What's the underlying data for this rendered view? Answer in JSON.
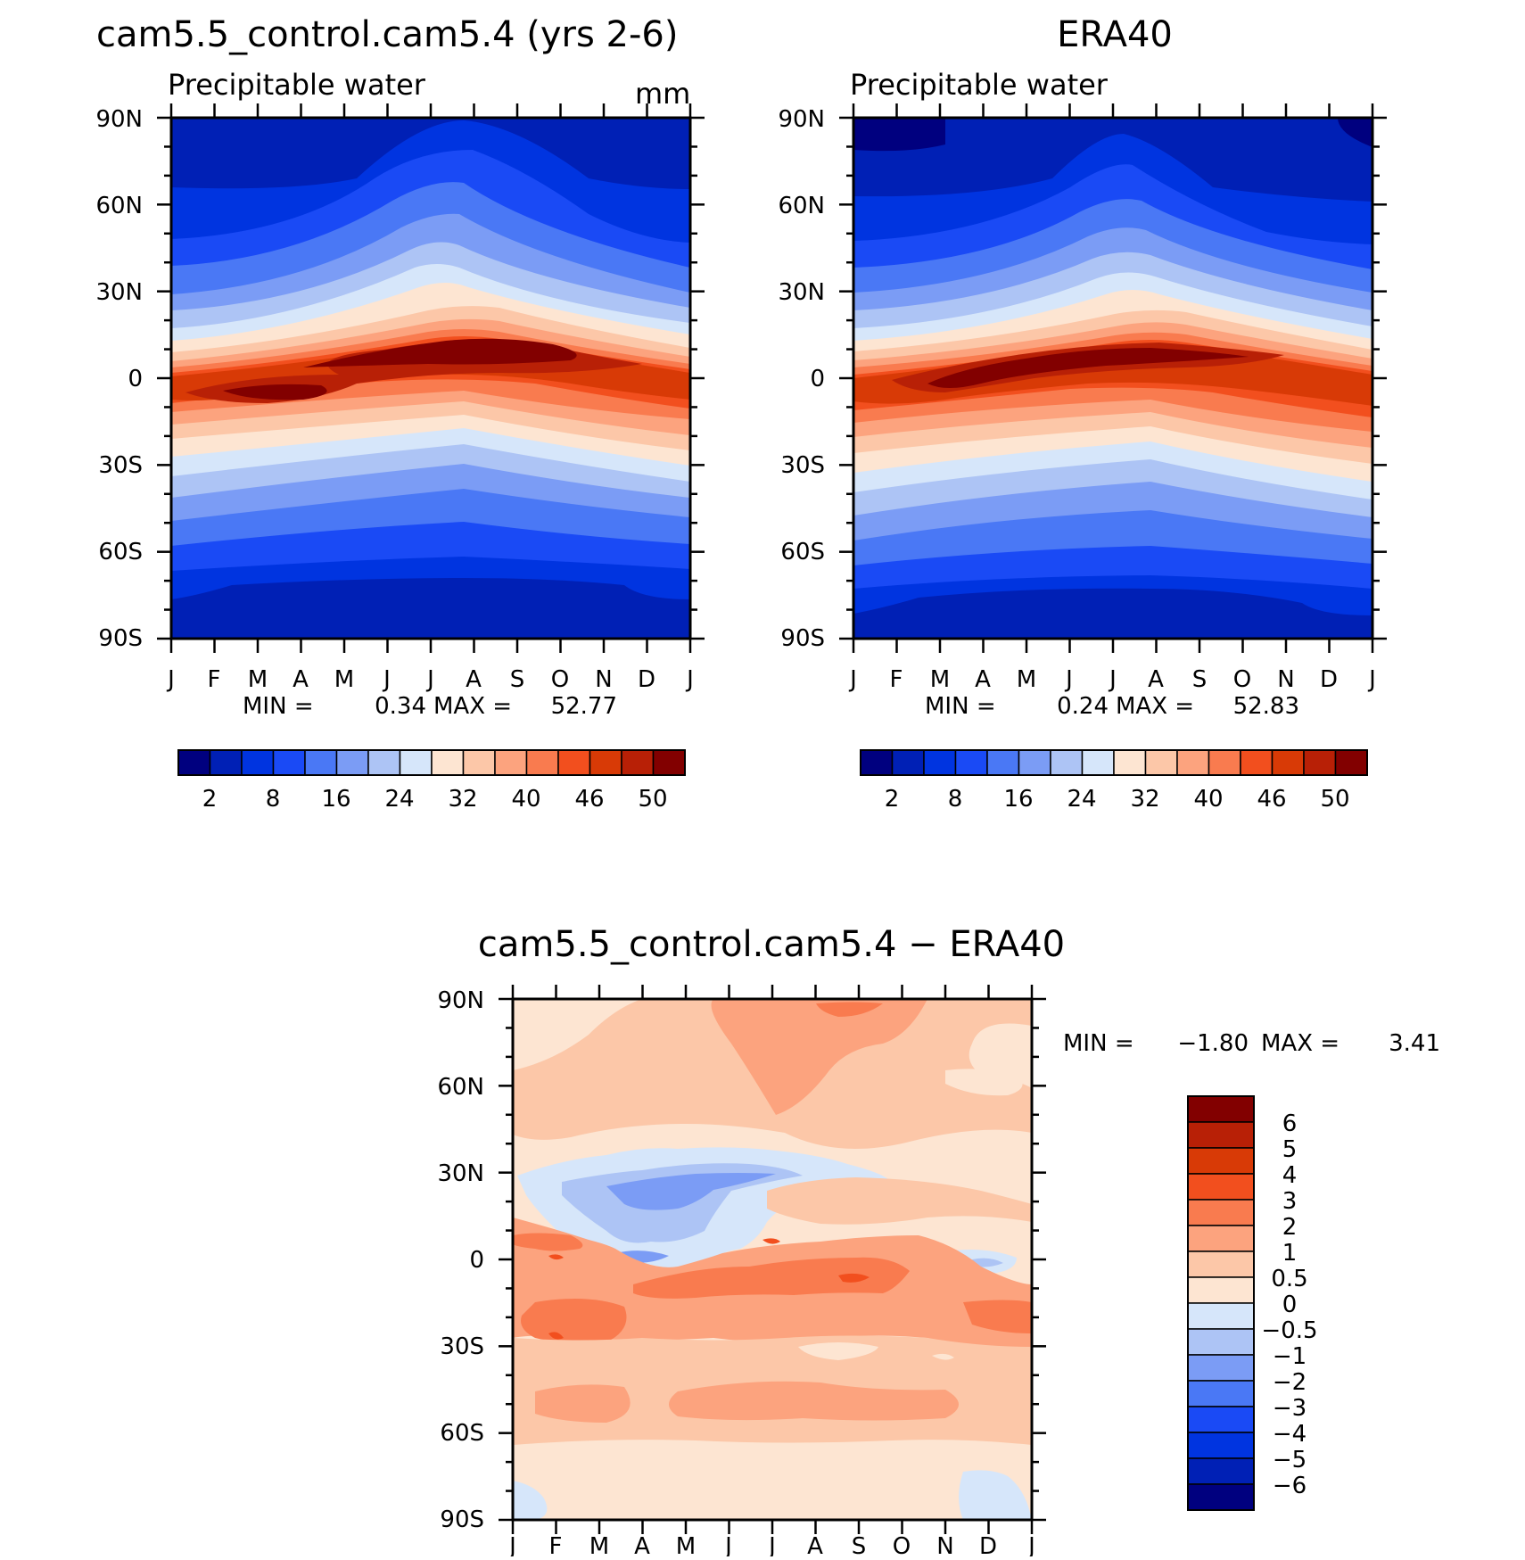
{
  "chart_data": [
    {
      "type": "heatmap",
      "title": "cam5.5_control.cam5.4 (yrs 2-6)",
      "subtitle": "Precipitable water",
      "units": "mm",
      "months": [
        "J",
        "F",
        "M",
        "A",
        "M",
        "J",
        "J",
        "A",
        "S",
        "O",
        "N",
        "D",
        "J"
      ],
      "lat_labels": [
        "90N",
        "60N",
        "30N",
        "0",
        "30S",
        "60S",
        "90S"
      ],
      "lat_range": [
        -90,
        90
      ],
      "stats": {
        "min_label": "MIN =",
        "min": "0.34",
        "max_label": "MAX =",
        "max": "52.77"
      },
      "colorbar_ticks": [
        "2",
        "8",
        "16",
        "24",
        "32",
        "40",
        "46",
        "50"
      ],
      "colors": [
        "#00007f",
        "#0020b5",
        "#0034e0",
        "#1a4af5",
        "#4a78f5",
        "#7b9cf5",
        "#adc4f5",
        "#d6e6fa",
        "#fde5d2",
        "#fcc7a8",
        "#fca37e",
        "#f97b4f",
        "#f24f1e",
        "#d83a06",
        "#b82006",
        "#820000"
      ]
    },
    {
      "type": "heatmap",
      "title": "ERA40",
      "subtitle": "Precipitable water",
      "units": "",
      "months": [
        "J",
        "F",
        "M",
        "A",
        "M",
        "J",
        "J",
        "A",
        "S",
        "O",
        "N",
        "D",
        "J"
      ],
      "lat_labels": [
        "90N",
        "60N",
        "30N",
        "0",
        "30S",
        "60S",
        "90S"
      ],
      "lat_range": [
        -90,
        90
      ],
      "stats": {
        "min_label": "MIN =",
        "min": "0.24",
        "max_label": "MAX =",
        "max": "52.83"
      },
      "colorbar_ticks": [
        "2",
        "8",
        "16",
        "24",
        "32",
        "40",
        "46",
        "50"
      ],
      "colors": [
        "#00007f",
        "#0020b5",
        "#0034e0",
        "#1a4af5",
        "#4a78f5",
        "#7b9cf5",
        "#adc4f5",
        "#d6e6fa",
        "#fde5d2",
        "#fcc7a8",
        "#fca37e",
        "#f97b4f",
        "#f24f1e",
        "#d83a06",
        "#b82006",
        "#820000"
      ]
    },
    {
      "type": "heatmap",
      "title": "cam5.5_control.cam5.4 − ERA40",
      "months": [
        "J",
        "F",
        "M",
        "A",
        "M",
        "J",
        "J",
        "A",
        "S",
        "O",
        "N",
        "D",
        "J"
      ],
      "lat_labels": [
        "90N",
        "60N",
        "30N",
        "0",
        "30S",
        "60S",
        "90S"
      ],
      "lat_range": [
        -90,
        90
      ],
      "stats": {
        "min_label": "MIN =",
        "min": "−1.80",
        "max_label": "MAX =",
        "max": "3.41"
      },
      "colorbar_ticks": [
        "6",
        "5",
        "4",
        "3",
        "2",
        "1",
        "0.5",
        "0",
        "−0.5",
        "−1",
        "−2",
        "−3",
        "−4",
        "−5",
        "−6"
      ],
      "colors": [
        "#820000",
        "#b82006",
        "#d83a06",
        "#f24f1e",
        "#f97b4f",
        "#fca37e",
        "#fcc7a8",
        "#fde5d2",
        "#d6e6fa",
        "#adc4f5",
        "#7b9cf5",
        "#4a78f5",
        "#1a4af5",
        "#0034e0",
        "#0020b5",
        "#00007f"
      ]
    }
  ]
}
